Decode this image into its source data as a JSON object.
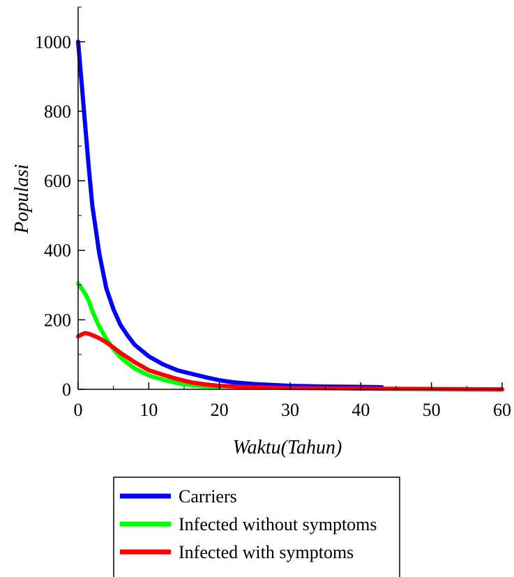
{
  "chart_data": {
    "type": "line",
    "xlabel": "Waktu(Tahun)",
    "ylabel": "Populasi",
    "xlim": [
      0,
      60
    ],
    "ylim": [
      0,
      1100
    ],
    "x_ticks": [
      0,
      10,
      20,
      30,
      40,
      50,
      60
    ],
    "y_ticks": [
      0,
      200,
      400,
      600,
      800,
      1000
    ],
    "grid": false,
    "legend_position": "bottom",
    "series": [
      {
        "name": "Carriers",
        "color": "#0000ff",
        "x": [
          0,
          0.5,
          1,
          1.5,
          2,
          3,
          4,
          5,
          6,
          7,
          8,
          10,
          12,
          14,
          16,
          18,
          20,
          22,
          25,
          28,
          30,
          35,
          40,
          43
        ],
        "y": [
          1000,
          880,
          760,
          640,
          530,
          390,
          290,
          230,
          185,
          155,
          128,
          95,
          72,
          55,
          45,
          35,
          26,
          20,
          15,
          12,
          10,
          8,
          7,
          6
        ]
      },
      {
        "name": "Infected without symptoms",
        "color": "#00ff00",
        "x": [
          0,
          0.5,
          1,
          1.5,
          2,
          3,
          4,
          5,
          6,
          7,
          8,
          10,
          12,
          14,
          16,
          18,
          20
        ],
        "y": [
          305,
          290,
          275,
          255,
          225,
          180,
          145,
          115,
          92,
          75,
          60,
          40,
          28,
          18,
          12,
          8,
          5
        ]
      },
      {
        "name": "Infected with symptoms",
        "color": "#ff0000",
        "x": [
          0,
          0.5,
          1,
          1.5,
          2,
          3,
          4,
          5,
          6,
          8,
          10,
          12,
          14,
          16,
          18,
          20,
          25,
          30,
          35,
          40,
          50,
          60
        ],
        "y": [
          152,
          158,
          162,
          160,
          156,
          147,
          135,
          120,
          105,
          78,
          55,
          42,
          30,
          20,
          14,
          10,
          6,
          4,
          3,
          2,
          1,
          0
        ]
      }
    ]
  }
}
